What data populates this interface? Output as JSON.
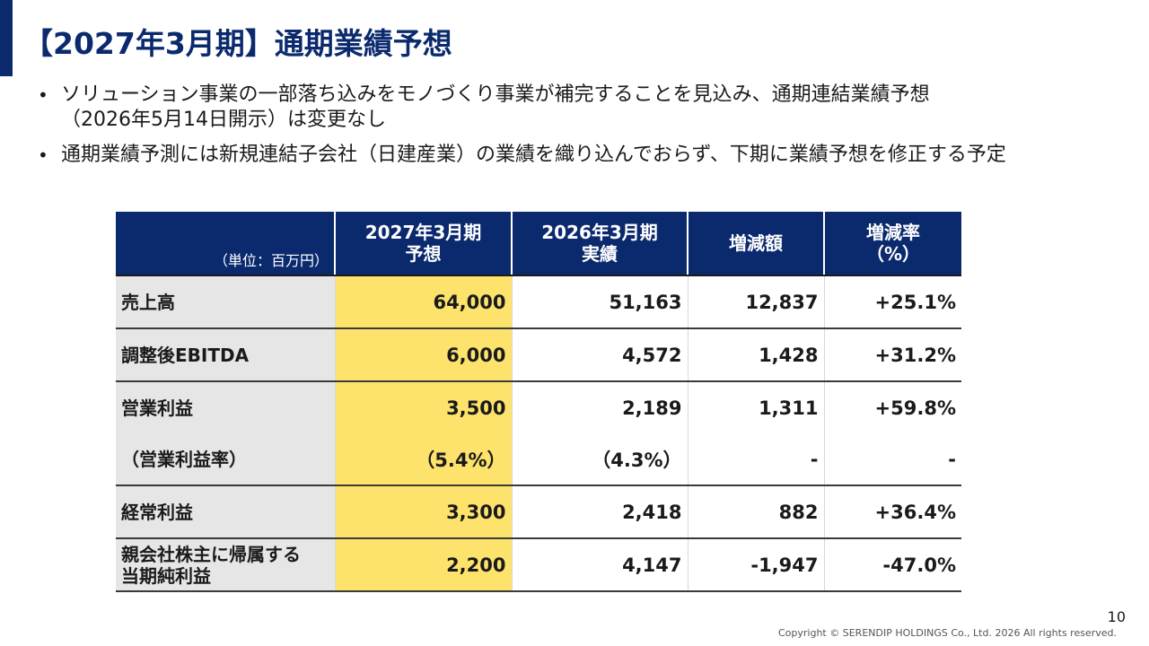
{
  "title": "【2027年3月期】通期業績予想",
  "bullets": [
    {
      "lines": [
        "ソリューション事業の一部落ち込みをモノづくり事業が補完することを見込み、通期連結業績予想",
        "（2026年5月14日開示）は変更なし"
      ]
    },
    {
      "lines": [
        "通期業績予測には新規連結子会社（日建産業）の業績を織り込んでおらず、下期に業績予想を修正する予定"
      ]
    }
  ],
  "table": {
    "unit": "（単位：百万円）",
    "headers": [
      [
        "2027年3月期",
        "予想"
      ],
      [
        "2026年3月期",
        "実績"
      ],
      [
        "増減額"
      ],
      [
        "増減率",
        "（%）"
      ]
    ],
    "rows": [
      {
        "label": [
          "売上高"
        ],
        "values": [
          "64,000",
          "51,163",
          "12,837",
          "+25.1%"
        ]
      },
      {
        "label": [
          "調整後EBITDA"
        ],
        "values": [
          "6,000",
          "4,572",
          "1,428",
          "+31.2%"
        ]
      },
      {
        "label": [
          "営業利益"
        ],
        "values": [
          "3,500",
          "2,189",
          "1,311",
          "+59.8%"
        ]
      },
      {
        "label": [
          "（営業利益率）"
        ],
        "values": [
          "（5.4%）",
          "（4.3%）",
          "-",
          "-"
        ]
      },
      {
        "label": [
          "経常利益"
        ],
        "values": [
          "3,300",
          "2,418",
          "882",
          "+36.4%"
        ]
      },
      {
        "label": [
          "親会社株主に帰属する",
          "当期純利益"
        ],
        "values": [
          "2,200",
          "4,147",
          "-1,947",
          "-47.0%"
        ]
      }
    ]
  },
  "page_number": "10",
  "copyright": "Copyright © SERENDIP HOLDINGS Co., Ltd.  2026 All rights reserved.",
  "colors": {
    "navy": "#0b2a6e",
    "highlight": "#fde36c",
    "label_bg": "#e6e6e6"
  }
}
